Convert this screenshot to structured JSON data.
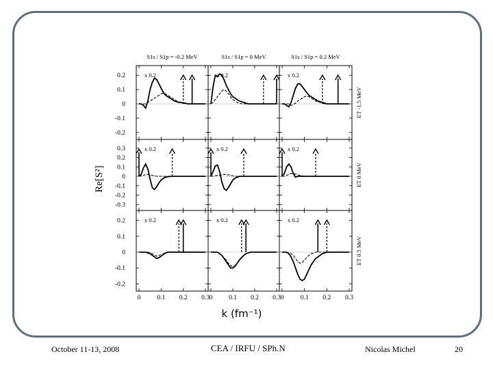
{
  "footer": {
    "date": "October 11-13, 2008",
    "institution": "CEA / IRFU / SPh.N",
    "author": "Nicolas Michel",
    "page": "20"
  },
  "chart_data": {
    "type": "line",
    "ylabel": "Re[S²]",
    "xlabel": "k (fm⁻¹)",
    "xlim": [
      0,
      0.3
    ],
    "x_ticks": [
      "0",
      "0.1",
      "0.2",
      "0.3"
    ],
    "column_titles": [
      "S1s / S1p = -0.2 MeV",
      "S1s / S1p = 0 MeV",
      "S1s / S1p = 0.2 MeV"
    ],
    "row_labels": [
      "ET -1.5 MeV",
      "ET 0 MeV",
      "ET 0.5 MeV"
    ],
    "y_ticks": [
      [
        "0.2",
        "0.1",
        "0",
        "-0.1",
        "-0.2"
      ],
      [
        "0.3",
        "0.2",
        "0.1",
        "0",
        "-0.1",
        "-0.2",
        "-0.3"
      ],
      [
        "0.2",
        "0.1",
        "0",
        "-0.1",
        "-0.2"
      ]
    ],
    "ylims": [
      [
        -0.22,
        0.22
      ],
      [
        -0.32,
        0.32
      ],
      [
        -0.22,
        0.22
      ]
    ],
    "scale_annotation": "x 0.2",
    "x": [
      0,
      0.01,
      0.02,
      0.03,
      0.04,
      0.05,
      0.06,
      0.07,
      0.08,
      0.09,
      0.1,
      0.11,
      0.12,
      0.13,
      0.14,
      0.15,
      0.16,
      0.17,
      0.18,
      0.19,
      0.2,
      0.21,
      0.22,
      0.23,
      0.24,
      0.25,
      0.26,
      0.27,
      0.28,
      0.29,
      0.3
    ],
    "panels": [
      {
        "row": 0,
        "col": 0,
        "arrows": [
          {
            "x": 0.24,
            "style": "solid"
          },
          {
            "x": 0.2,
            "style": "dashed"
          }
        ],
        "series": [
          {
            "name": "solid",
            "values": [
              0,
              0,
              -0.01,
              -0.03,
              0.02,
              0.1,
              0.15,
              0.18,
              0.17,
              0.14,
              0.11,
              0.08,
              0.06,
              0.05,
              0.04,
              0.03,
              0.02,
              0.015,
              0.01,
              0.01,
              0.005,
              0.005,
              0,
              0,
              0,
              0,
              0,
              0,
              0,
              0,
              0
            ]
          },
          {
            "name": "dashed",
            "values": [
              0,
              0,
              0,
              0,
              0.01,
              0.02,
              0.03,
              0.04,
              0.05,
              0.06,
              0.07,
              0.075,
              0.07,
              0.06,
              0.05,
              0.04,
              0.03,
              0.02,
              0.015,
              0.01,
              0.005,
              0,
              0,
              0,
              0,
              0,
              0,
              0,
              0,
              0,
              0
            ]
          }
        ]
      },
      {
        "row": 0,
        "col": 1,
        "arrows": [
          {
            "x": 0.3,
            "style": "solid"
          },
          {
            "x": 0.24,
            "style": "dashed"
          }
        ],
        "series": [
          {
            "name": "solid",
            "values": [
              0,
              0.12,
              0.2,
              0.19,
              0.21,
              0.2,
              0.17,
              0.13,
              0.1,
              0.07,
              0.05,
              0.04,
              0.03,
              0.02,
              0.015,
              0.01,
              0.005,
              0,
              0,
              0,
              0,
              0,
              0,
              0,
              0,
              0,
              0,
              0,
              0,
              0,
              0
            ]
          },
          {
            "name": "dashed",
            "values": [
              0,
              0.01,
              0.03,
              0.05,
              0.07,
              0.09,
              0.1,
              0.09,
              0.07,
              0.05,
              0.03,
              0.02,
              0.01,
              0.005,
              0,
              0,
              0,
              0,
              0,
              0,
              0,
              0,
              0,
              0,
              0,
              0,
              0,
              0,
              0,
              0,
              0
            ]
          }
        ]
      },
      {
        "row": 0,
        "col": 2,
        "arrows": [
          {
            "x": 0.25,
            "style": "solid"
          },
          {
            "x": 0.18,
            "style": "dashed"
          }
        ],
        "series": [
          {
            "name": "solid",
            "values": [
              0,
              0,
              -0.01,
              -0.02,
              0.01,
              0.06,
              0.11,
              0.14,
              0.14,
              0.12,
              0.1,
              0.08,
              0.06,
              0.05,
              0.04,
              0.03,
              0.02,
              0.015,
              0.01,
              0.005,
              0,
              0,
              0,
              0,
              0,
              0,
              0,
              0,
              0,
              0,
              0
            ]
          },
          {
            "name": "dashed",
            "values": [
              0,
              0,
              0,
              0,
              -0.01,
              -0.005,
              0.005,
              0.02,
              0.03,
              0.04,
              0.05,
              0.055,
              0.05,
              0.04,
              0.03,
              0.02,
              0.015,
              0.01,
              0.005,
              0,
              0,
              0,
              0,
              0,
              0,
              0,
              0,
              0,
              0,
              0,
              0
            ]
          }
        ]
      },
      {
        "row": 1,
        "col": 0,
        "arrows": [
          {
            "x": 0.0,
            "style": "solid"
          },
          {
            "x": 0.15,
            "style": "dashed"
          }
        ],
        "series": [
          {
            "name": "solid",
            "values": [
              0,
              0.02,
              0.09,
              0.13,
              0.08,
              -0.03,
              -0.12,
              -0.14,
              -0.11,
              -0.07,
              -0.04,
              -0.02,
              -0.01,
              -0.005,
              0,
              0,
              0,
              0,
              0,
              0,
              0,
              0,
              0,
              0,
              0,
              0,
              0,
              0,
              0,
              0,
              0
            ]
          },
          {
            "name": "dashed",
            "values": [
              0,
              0.005,
              0.01,
              0.02,
              0.02,
              0.015,
              0.01,
              0.005,
              0,
              0,
              0,
              0,
              0,
              0,
              0,
              0,
              0,
              0,
              0,
              0,
              0,
              0,
              0,
              0,
              0,
              0,
              0,
              0,
              0,
              0,
              0
            ]
          }
        ]
      },
      {
        "row": 1,
        "col": 1,
        "arrows": [
          {
            "x": 0.0,
            "style": "solid"
          },
          {
            "x": 0.15,
            "style": "dashed"
          }
        ],
        "series": [
          {
            "name": "solid",
            "values": [
              0,
              0.05,
              0.11,
              0.12,
              0.05,
              -0.06,
              -0.13,
              -0.15,
              -0.12,
              -0.08,
              -0.04,
              -0.02,
              -0.01,
              0,
              0,
              0,
              0,
              0,
              0,
              0,
              0,
              0,
              0,
              0,
              0,
              0,
              0,
              0,
              0,
              0,
              0
            ]
          },
          {
            "name": "dashed",
            "values": [
              0,
              0,
              0.005,
              0.01,
              0.01,
              0.015,
              0.02,
              0.02,
              0.015,
              0.01,
              0.005,
              0,
              0,
              0,
              0,
              0,
              0,
              0,
              0,
              0,
              0,
              0,
              0,
              0,
              0,
              0,
              0,
              0,
              0,
              0,
              0
            ]
          }
        ]
      },
      {
        "row": 1,
        "col": 2,
        "arrows": [
          {
            "x": 0.0,
            "style": "solid"
          },
          {
            "x": 0.15,
            "style": "dashed"
          }
        ],
        "series": [
          {
            "name": "solid",
            "values": [
              0,
              0.03,
              0.1,
              0.13,
              0.1,
              0.03,
              -0.01,
              0,
              0,
              0,
              0,
              0,
              0,
              0,
              0,
              0,
              0,
              0,
              0,
              0,
              0,
              0,
              0,
              0,
              0,
              0,
              0,
              0,
              0,
              0,
              0
            ]
          },
          {
            "name": "dashed",
            "values": [
              0,
              0,
              0.01,
              0.02,
              0.03,
              0.03,
              0.025,
              0.015,
              0.01,
              0.005,
              0,
              0,
              0,
              0,
              0,
              0,
              0,
              0,
              0,
              0,
              0,
              0,
              0,
              0,
              0,
              0,
              0,
              0,
              0,
              0,
              0
            ]
          }
        ]
      },
      {
        "row": 2,
        "col": 0,
        "arrows": [
          {
            "x": 0.2,
            "style": "solid"
          },
          {
            "x": 0.18,
            "style": "dashed"
          }
        ],
        "series": [
          {
            "name": "solid",
            "values": [
              0,
              0,
              0,
              0,
              -0.005,
              -0.01,
              -0.02,
              -0.03,
              -0.04,
              -0.035,
              -0.025,
              -0.015,
              -0.005,
              0,
              0,
              0,
              0,
              0,
              0,
              0,
              0,
              0,
              0,
              0,
              0,
              0,
              0,
              0,
              0,
              0,
              0
            ]
          },
          {
            "name": "dashed",
            "values": [
              0,
              0,
              0,
              0,
              0,
              -0.005,
              -0.01,
              -0.02,
              -0.025,
              -0.02,
              -0.015,
              -0.01,
              -0.005,
              0,
              0,
              0,
              0,
              0,
              0,
              0,
              0,
              0,
              0,
              0,
              0,
              0,
              0,
              0,
              0,
              0,
              0
            ]
          }
        ]
      },
      {
        "row": 2,
        "col": 1,
        "arrows": [
          {
            "x": 0.16,
            "style": "solid"
          },
          {
            "x": 0.14,
            "style": "dashed"
          }
        ],
        "series": [
          {
            "name": "solid",
            "values": [
              0,
              0,
              0,
              0,
              -0.01,
              -0.02,
              -0.04,
              -0.06,
              -0.08,
              -0.1,
              -0.1,
              -0.09,
              -0.07,
              -0.05,
              -0.035,
              -0.02,
              -0.01,
              -0.005,
              0,
              0,
              0,
              0,
              0,
              0,
              0,
              0,
              0,
              0,
              0,
              0,
              0
            ]
          },
          {
            "name": "dashed",
            "values": [
              0,
              0,
              0,
              0,
              -0.01,
              -0.02,
              -0.035,
              -0.05,
              -0.07,
              -0.085,
              -0.09,
              -0.085,
              -0.07,
              -0.05,
              -0.035,
              -0.02,
              -0.01,
              -0.005,
              0,
              0,
              0,
              0,
              0,
              0,
              0,
              0,
              0,
              0,
              0,
              0,
              0
            ]
          }
        ]
      },
      {
        "row": 2,
        "col": 2,
        "arrows": [
          {
            "x": 0.16,
            "style": "solid"
          },
          {
            "x": 0.2,
            "style": "dashed"
          }
        ],
        "series": [
          {
            "name": "solid",
            "values": [
              0,
              0,
              0,
              -0.01,
              -0.03,
              -0.06,
              -0.1,
              -0.14,
              -0.17,
              -0.18,
              -0.17,
              -0.14,
              -0.11,
              -0.08,
              -0.06,
              -0.04,
              -0.03,
              -0.02,
              -0.01,
              -0.005,
              0,
              0,
              0,
              0,
              0,
              0,
              0,
              0,
              0,
              0,
              0
            ]
          },
          {
            "name": "dashed",
            "values": [
              0,
              0,
              0,
              -0.005,
              -0.01,
              -0.02,
              -0.04,
              -0.06,
              -0.07,
              -0.065,
              -0.05,
              -0.035,
              -0.02,
              -0.01,
              -0.005,
              0,
              0,
              0,
              0,
              0,
              0,
              0,
              0,
              0,
              0,
              0,
              0,
              0,
              0,
              0,
              0
            ]
          }
        ]
      }
    ]
  }
}
